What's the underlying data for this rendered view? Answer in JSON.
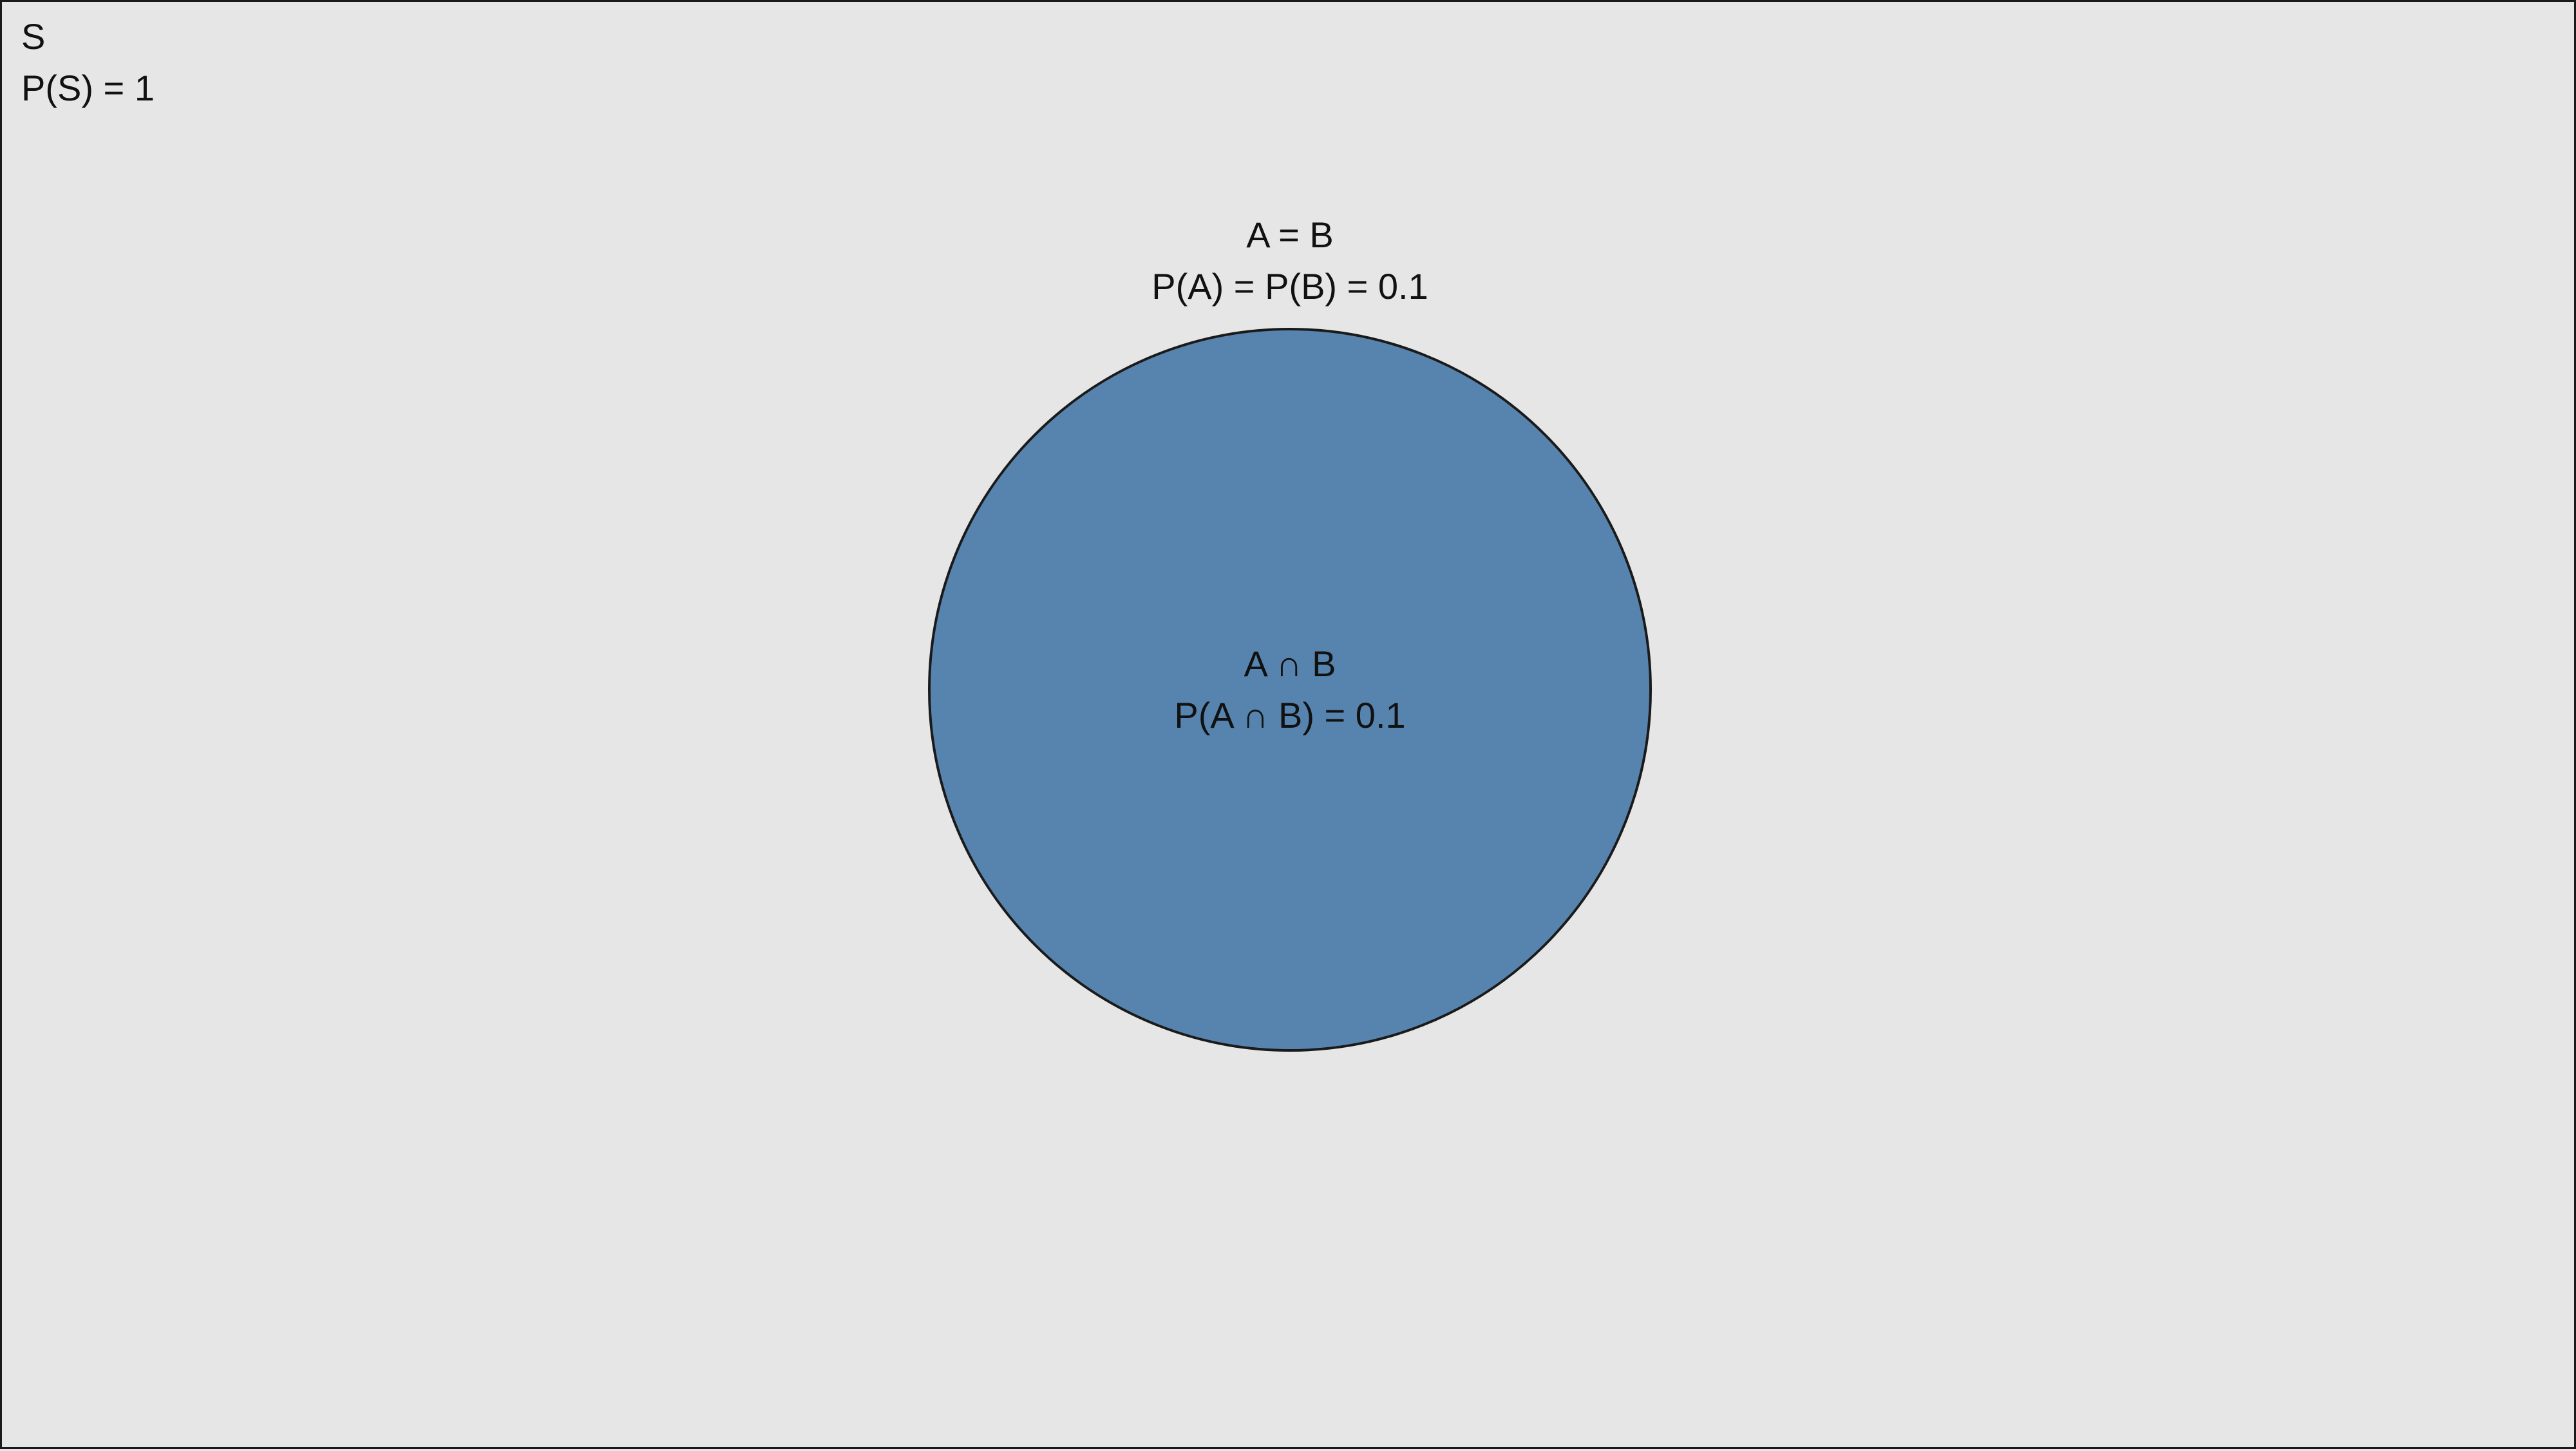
{
  "sample_space": {
    "name": "S",
    "probability": "P(S) = 1"
  },
  "set": {
    "name": "A = B",
    "probability": "P(A) = P(B) = 0.1",
    "fill_color": "#5784ae",
    "stroke_color": "#1a1a1a"
  },
  "intersection": {
    "name": "A ∩ B",
    "probability": "P(A ∩ B) = 0.1"
  },
  "background_color": "#e6e6e6"
}
